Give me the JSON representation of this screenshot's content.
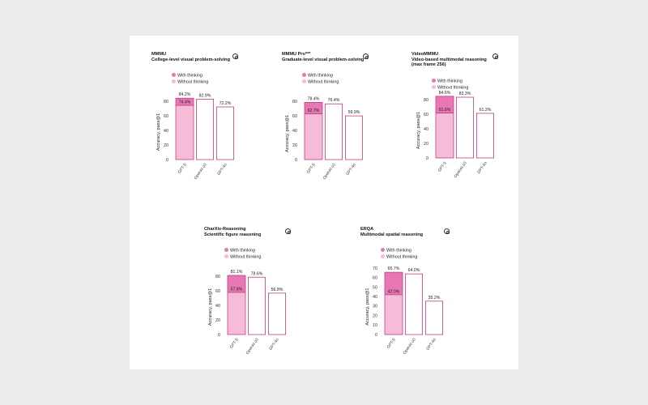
{
  "colors": {
    "thinking": "#e878b4",
    "without": "#f6bcd7",
    "outline": "#c23a86",
    "background": "#ffffff",
    "page": "#ececec"
  },
  "legend": {
    "with_thinking": "With thinking",
    "without_thinking": "Without thinking"
  },
  "chart_data": [
    {
      "type": "bar",
      "title": "MMMU",
      "subtitle": "College-level visual problem-solving",
      "ylabel": "Accuracy, pass@1",
      "ylim": [
        0,
        90
      ],
      "yticks": [
        0,
        20,
        40,
        60,
        80
      ],
      "categories": [
        "GPT-5",
        "OpenAI o3",
        "GPT-4o"
      ],
      "series": [
        {
          "name": "With thinking",
          "values": [
            84.2,
            82.9,
            72.2
          ]
        },
        {
          "name": "Without thinking",
          "values": [
            74.4,
            null,
            null
          ]
        }
      ],
      "value_labels": [
        "84.2%",
        "82.9%",
        "72.2%"
      ],
      "inner_label": "74.4%"
    },
    {
      "type": "bar",
      "title": "MMMU Pro***",
      "subtitle": "Graduate-level visual problem-solving",
      "ylabel": "Accuracy, pass@1",
      "ylim": [
        0,
        85
      ],
      "yticks": [
        0,
        20,
        40,
        60,
        80
      ],
      "categories": [
        "GPT-5",
        "OpenAI o3",
        "GPT-4o"
      ],
      "series": [
        {
          "name": "With thinking",
          "values": [
            78.4,
            76.4,
            59.9
          ]
        },
        {
          "name": "Without thinking",
          "values": [
            62.7,
            null,
            null
          ]
        }
      ],
      "value_labels": [
        "78.4%",
        "76.4%",
        "59.9%"
      ],
      "inner_label": "62.7%"
    },
    {
      "type": "bar",
      "title": "VideoMMMU",
      "subtitle": "Video-based multimodal reasoning",
      "subtitle2": "(max frame 256)",
      "ylabel": "Accuracy, pass@1",
      "ylim": [
        0,
        90
      ],
      "yticks": [
        0,
        20,
        40,
        60,
        80
      ],
      "categories": [
        "GPT-5",
        "OpenAI o3",
        "GPT-4o"
      ],
      "series": [
        {
          "name": "With thinking",
          "values": [
            84.6,
            83.3,
            61.2
          ]
        },
        {
          "name": "Without thinking",
          "values": [
            61.6,
            null,
            null
          ]
        }
      ],
      "value_labels": [
        "84.6%",
        "83.3%",
        "61.2%"
      ],
      "inner_label": "61.6%"
    },
    {
      "type": "bar",
      "title": "CharXiv-Reasoning",
      "subtitle": "Scientific figure reasoning",
      "ylabel": "Accuracy, pass@1",
      "ylim": [
        0,
        90
      ],
      "yticks": [
        0,
        20,
        40,
        60,
        80
      ],
      "categories": [
        "GPT-5",
        "OpenAI o3",
        "GPT-4o"
      ],
      "series": [
        {
          "name": "With thinking",
          "values": [
            81.1,
            78.6,
            56.8
          ]
        },
        {
          "name": "Without thinking",
          "values": [
            57.8,
            null,
            null
          ]
        }
      ],
      "value_labels": [
        "81.1%",
        "78.6%",
        "56.8%"
      ],
      "inner_label": "57.8%"
    },
    {
      "type": "bar",
      "title": "ERQA",
      "subtitle": "Multimodal spatial reasoning",
      "ylabel": "Accuracy, pass@1",
      "ylim": [
        0,
        70
      ],
      "yticks": [
        0,
        10,
        20,
        30,
        40,
        50,
        60,
        70
      ],
      "categories": [
        "GPT-5",
        "OpenAI o3",
        "GPT-4o"
      ],
      "series": [
        {
          "name": "With thinking",
          "values": [
            65.7,
            64.0,
            35.2
          ]
        },
        {
          "name": "Without thinking",
          "values": [
            42.0,
            null,
            null
          ]
        }
      ],
      "value_labels": [
        "65.7%",
        "64.0%",
        "35.2%"
      ],
      "inner_label": "42.0%"
    }
  ]
}
